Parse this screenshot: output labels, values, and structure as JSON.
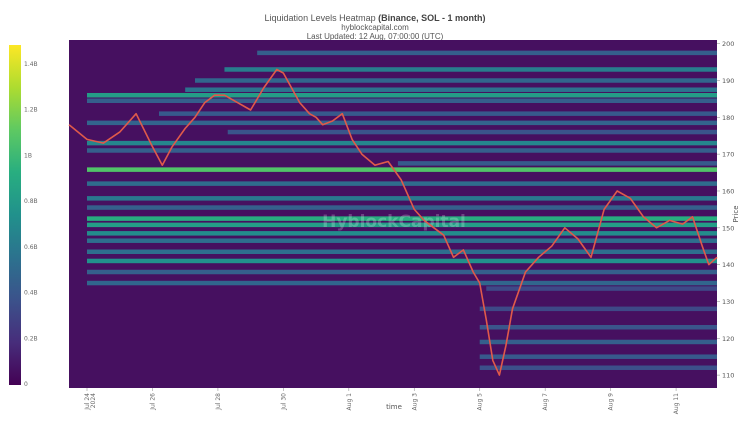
{
  "header": {
    "title_prefix": "Liquidation Levels Heatmap ",
    "title_bold": "(Binance, SOL - 1 month)",
    "site": "hyblockcapital.com",
    "updated": "Last Updated: 12 Aug, 07:00:00 (UTC)"
  },
  "watermark": "HyblockCapital",
  "chart_data": {
    "type": "heatmap",
    "xlabel": "time",
    "ylabel": "Price",
    "x_ticks": [
      {
        "label": "Jul 24",
        "sub": "2024",
        "day": 0
      },
      {
        "label": "Jul 26",
        "day": 2
      },
      {
        "label": "Jul 28",
        "day": 4
      },
      {
        "label": "Jul 30",
        "day": 6
      },
      {
        "label": "Aug 1",
        "day": 8
      },
      {
        "label": "Aug 3",
        "day": 10
      },
      {
        "label": "Aug 5",
        "day": 12
      },
      {
        "label": "Aug 7",
        "day": 14
      },
      {
        "label": "Aug 9",
        "day": 16
      },
      {
        "label": "Aug 11",
        "day": 18
      }
    ],
    "xlim_days": [
      -0.55,
      19.25
    ],
    "ylim": [
      106.5,
      201
    ],
    "y_ticks": [
      110,
      120,
      130,
      140,
      150,
      160,
      170,
      180,
      190,
      200
    ],
    "colorbar": {
      "labels": [
        "0",
        "0.2B",
        "0.4B",
        "0.6B",
        "0.8B",
        "1B",
        "1.2B",
        "1.4B"
      ],
      "max": 1.5,
      "colors": [
        "#440154",
        "#472d7b",
        "#3b528b",
        "#2c728e",
        "#21918c",
        "#28ae80",
        "#5ec962",
        "#addc30",
        "#fde725"
      ]
    },
    "background_color": "#461060",
    "price_line_color": "#e05a4a",
    "bands": [
      {
        "price": 197.5,
        "intensity": 0.3,
        "from_day": 5.2
      },
      {
        "price": 193.0,
        "intensity": 0.42,
        "from_day": 4.2
      },
      {
        "price": 190.0,
        "intensity": 0.33,
        "from_day": 3.3
      },
      {
        "price": 187.5,
        "intensity": 0.38,
        "from_day": 3.0
      },
      {
        "price": 186.0,
        "intensity": 0.55,
        "from_day": 0.0
      },
      {
        "price": 184.5,
        "intensity": 0.3,
        "from_day": 0.0
      },
      {
        "price": 181.0,
        "intensity": 0.28,
        "from_day": 2.2
      },
      {
        "price": 178.5,
        "intensity": 0.32,
        "from_day": 0.0
      },
      {
        "price": 176.0,
        "intensity": 0.26,
        "from_day": 4.3
      },
      {
        "price": 173.0,
        "intensity": 0.45,
        "from_day": 0.0
      },
      {
        "price": 171.0,
        "intensity": 0.3,
        "from_day": 0.0
      },
      {
        "price": 167.5,
        "intensity": 0.28,
        "from_day": 9.5
      },
      {
        "price": 165.8,
        "intensity": 0.72,
        "from_day": 0.0
      },
      {
        "price": 162.0,
        "intensity": 0.35,
        "from_day": 0.0
      },
      {
        "price": 158.0,
        "intensity": 0.4,
        "from_day": 0.0
      },
      {
        "price": 155.5,
        "intensity": 0.3,
        "from_day": 0.0
      },
      {
        "price": 152.5,
        "intensity": 0.62,
        "from_day": 0.0
      },
      {
        "price": 150.8,
        "intensity": 0.55,
        "from_day": 0.0
      },
      {
        "price": 148.5,
        "intensity": 0.48,
        "from_day": 0.0
      },
      {
        "price": 146.5,
        "intensity": 0.36,
        "from_day": 0.0
      },
      {
        "price": 143.5,
        "intensity": 0.36,
        "from_day": 0.0
      },
      {
        "price": 141.0,
        "intensity": 0.5,
        "from_day": 0.0
      },
      {
        "price": 138.0,
        "intensity": 0.3,
        "from_day": 0.0
      },
      {
        "price": 135.0,
        "intensity": 0.33,
        "from_day": 0.0
      },
      {
        "price": 133.5,
        "intensity": 0.22,
        "from_day": 12.2
      },
      {
        "price": 128.0,
        "intensity": 0.22,
        "from_day": 12.0
      },
      {
        "price": 123.0,
        "intensity": 0.26,
        "from_day": 12.0
      },
      {
        "price": 119.0,
        "intensity": 0.3,
        "from_day": 12.0
      },
      {
        "price": 115.0,
        "intensity": 0.28,
        "from_day": 12.0
      },
      {
        "price": 112.0,
        "intensity": 0.24,
        "from_day": 12.0
      }
    ],
    "price_series": {
      "x_days": [
        -0.55,
        0.0,
        0.5,
        1.0,
        1.5,
        2.0,
        2.3,
        2.6,
        3.0,
        3.3,
        3.6,
        3.9,
        4.2,
        4.6,
        5.0,
        5.4,
        5.8,
        6.0,
        6.5,
        6.8,
        7.0,
        7.2,
        7.5,
        7.8,
        8.1,
        8.4,
        8.8,
        9.2,
        9.6,
        10.0,
        10.3,
        10.6,
        10.9,
        11.2,
        11.5,
        11.8,
        12.0,
        12.2,
        12.4,
        12.6,
        12.8,
        13.0,
        13.4,
        13.8,
        14.2,
        14.6,
        15.0,
        15.4,
        15.8,
        16.2,
        16.6,
        17.0,
        17.4,
        17.8,
        18.2,
        18.5,
        18.8,
        19.0,
        19.25
      ],
      "y": [
        178,
        174,
        173,
        176,
        181,
        172,
        167,
        172,
        177,
        180,
        184,
        186,
        186,
        184,
        182,
        188,
        193,
        192,
        184,
        181,
        180,
        178,
        179,
        181,
        174,
        170,
        167,
        168,
        163,
        155,
        152,
        150,
        148,
        142,
        144,
        138,
        135,
        125,
        114,
        110,
        118,
        128,
        138,
        142,
        145,
        150,
        147,
        142,
        155,
        160,
        158,
        153,
        150,
        152,
        151,
        153,
        145,
        140,
        142
      ]
    }
  }
}
